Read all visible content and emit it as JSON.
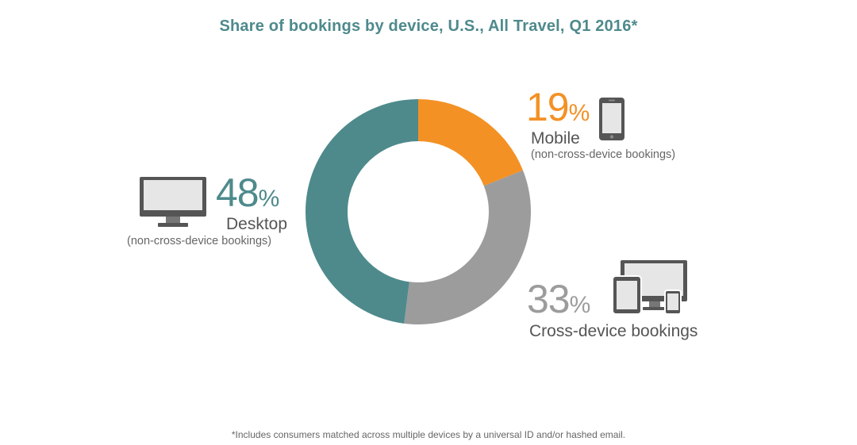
{
  "title": "Share of bookings by device, U.S., All Travel, Q1 2016*",
  "footnote": "*Includes consumers matched across multiple devices by a universal ID and/or hashed email.",
  "colors": {
    "mobile": "#f39125",
    "cross_device": "#9c9c9c",
    "desktop": "#4e8a8c",
    "title": "#4e8a8c",
    "icon": "#555555"
  },
  "chart_data": {
    "type": "pie",
    "title": "Share of bookings by device, U.S., All Travel, Q1 2016*",
    "unit": "%",
    "series": [
      {
        "name": "Mobile",
        "value": 19,
        "color": "#f39125",
        "label_value": "19",
        "label_name": "Mobile",
        "label_note": "(non-cross-device bookings)",
        "icon": "smartphone-icon"
      },
      {
        "name": "Cross-device bookings",
        "value": 33,
        "color": "#9c9c9c",
        "label_value": "33",
        "label_name": "Cross-device bookings",
        "icon": "multi-device-icon"
      },
      {
        "name": "Desktop",
        "value": 48,
        "color": "#4e8a8c",
        "label_value": "48",
        "label_name": "Desktop",
        "label_note": "(non-cross-device bookings)",
        "icon": "desktop-monitor-icon"
      }
    ],
    "percent_symbol": "%"
  }
}
